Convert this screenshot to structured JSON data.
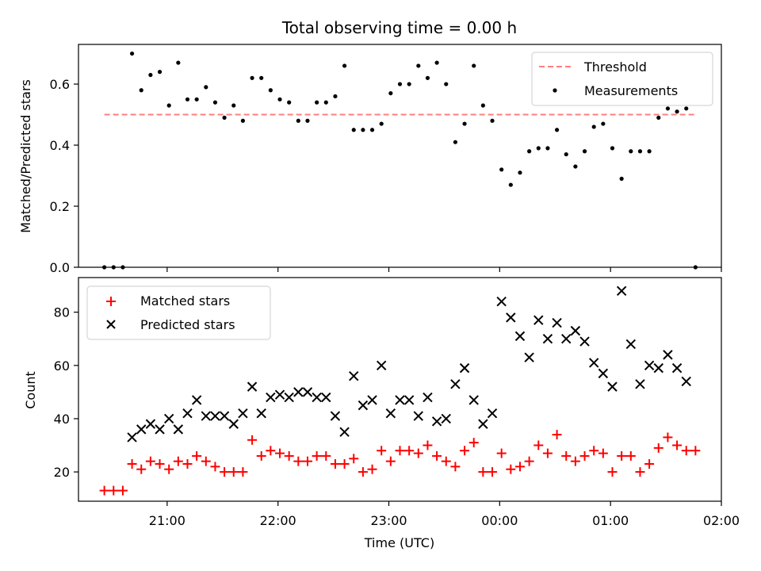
{
  "chart_data": [
    {
      "type": "scatter",
      "title": "Total observing time = 0.00 h",
      "ylabel": "Matched/Predicted stars",
      "xlim": [
        "20:12",
        "02:00"
      ],
      "ylim": [
        0,
        0.73
      ],
      "yticks": [
        "0.0",
        "0.2",
        "0.4",
        "0.6"
      ],
      "legend_position": "top-right",
      "threshold": {
        "name": "Threshold",
        "value": 0.5,
        "x_start": "20:26",
        "x_end": "01:46",
        "color": "#ff7f7f",
        "style": "dashed"
      },
      "series": [
        {
          "name": "Measurements",
          "color": "#000000",
          "marker": "dot",
          "x": [
            "20:26",
            "20:31",
            "20:36",
            "20:41",
            "20:46",
            "20:51",
            "20:56",
            "21:01",
            "21:06",
            "21:11",
            "21:16",
            "21:21",
            "21:26",
            "21:31",
            "21:36",
            "21:41",
            "21:46",
            "21:51",
            "21:56",
            "22:01",
            "22:06",
            "22:11",
            "22:16",
            "22:21",
            "22:26",
            "22:31",
            "22:36",
            "22:41",
            "22:46",
            "22:51",
            "22:56",
            "23:01",
            "23:06",
            "23:11",
            "23:16",
            "23:21",
            "23:26",
            "23:31",
            "23:36",
            "23:41",
            "23:46",
            "23:51",
            "23:56",
            "00:01",
            "00:06",
            "00:11",
            "00:16",
            "00:21",
            "00:26",
            "00:31",
            "00:36",
            "00:41",
            "00:46",
            "00:51",
            "00:56",
            "01:01",
            "01:06",
            "01:11",
            "01:16",
            "01:21",
            "01:26",
            "01:31",
            "01:36",
            "01:41",
            "01:46"
          ],
          "y": [
            0.0,
            0.0,
            0.0,
            0.7,
            0.58,
            0.63,
            0.64,
            0.53,
            0.67,
            0.55,
            0.55,
            0.59,
            0.54,
            0.49,
            0.53,
            0.48,
            0.62,
            0.62,
            0.58,
            0.55,
            0.54,
            0.48,
            0.48,
            0.54,
            0.54,
            0.56,
            0.66,
            0.45,
            0.45,
            0.45,
            0.47,
            0.57,
            0.6,
            0.6,
            0.66,
            0.62,
            0.67,
            0.6,
            0.41,
            0.47,
            0.66,
            0.53,
            0.48,
            0.32,
            0.27,
            0.31,
            0.38,
            0.39,
            0.39,
            0.45,
            0.37,
            0.33,
            0.38,
            0.46,
            0.47,
            0.39,
            0.29,
            0.38,
            0.38,
            0.38,
            0.49,
            0.52,
            0.51,
            0.52,
            0.0
          ]
        }
      ]
    },
    {
      "type": "scatter",
      "xlabel": "Time (UTC)",
      "ylabel": "Count",
      "xlim": [
        "20:12",
        "02:00"
      ],
      "ylim": [
        9,
        93
      ],
      "xticks": [
        "21:00",
        "22:00",
        "23:00",
        "00:00",
        "01:00",
        "02:00"
      ],
      "yticks": [
        "20",
        "40",
        "60",
        "80"
      ],
      "legend_position": "top-left",
      "series": [
        {
          "name": "Matched stars",
          "color": "#ff0000",
          "marker": "plus",
          "x": [
            "20:26",
            "20:31",
            "20:36",
            "20:41",
            "20:46",
            "20:51",
            "20:56",
            "21:01",
            "21:06",
            "21:11",
            "21:16",
            "21:21",
            "21:26",
            "21:31",
            "21:36",
            "21:41",
            "21:46",
            "21:51",
            "21:56",
            "22:01",
            "22:06",
            "22:11",
            "22:16",
            "22:21",
            "22:26",
            "22:31",
            "22:36",
            "22:41",
            "22:46",
            "22:51",
            "22:56",
            "23:01",
            "23:06",
            "23:11",
            "23:16",
            "23:21",
            "23:26",
            "23:31",
            "23:36",
            "23:41",
            "23:46",
            "23:51",
            "23:56",
            "00:01",
            "00:06",
            "00:11",
            "00:16",
            "00:21",
            "00:26",
            "00:31",
            "00:36",
            "00:41",
            "00:46",
            "00:51",
            "00:56",
            "01:01",
            "01:06",
            "01:11",
            "01:16",
            "01:21",
            "01:26",
            "01:31",
            "01:36",
            "01:41",
            "01:46"
          ],
          "y": [
            13,
            13,
            13,
            23,
            21,
            24,
            23,
            21,
            24,
            23,
            26,
            24,
            22,
            20,
            20,
            20,
            32,
            26,
            28,
            27,
            26,
            24,
            24,
            26,
            26,
            23,
            23,
            25,
            20,
            21,
            28,
            24,
            28,
            28,
            27,
            30,
            26,
            24,
            22,
            28,
            31,
            20,
            20,
            27,
            21,
            22,
            24,
            30,
            27,
            34,
            26,
            24,
            26,
            28,
            27,
            20,
            26,
            26,
            20,
            23,
            29,
            33,
            30,
            28,
            28
          ]
        },
        {
          "name": "Predicted stars",
          "color": "#000000",
          "marker": "x",
          "x": [
            "20:41",
            "20:46",
            "20:51",
            "20:56",
            "21:01",
            "21:06",
            "21:11",
            "21:16",
            "21:21",
            "21:26",
            "21:31",
            "21:36",
            "21:41",
            "21:46",
            "21:51",
            "21:56",
            "22:01",
            "22:06",
            "22:11",
            "22:16",
            "22:21",
            "22:26",
            "22:31",
            "22:36",
            "22:41",
            "22:46",
            "22:51",
            "22:56",
            "23:01",
            "23:06",
            "23:11",
            "23:16",
            "23:21",
            "23:26",
            "23:31",
            "23:36",
            "23:41",
            "23:46",
            "23:51",
            "23:56",
            "00:01",
            "00:06",
            "00:11",
            "00:16",
            "00:21",
            "00:26",
            "00:31",
            "00:36",
            "00:41",
            "00:46",
            "00:51",
            "00:56",
            "01:01",
            "01:06",
            "01:11",
            "01:16",
            "01:21",
            "01:26",
            "01:31",
            "01:36",
            "01:41"
          ],
          "y": [
            33,
            36,
            38,
            36,
            40,
            36,
            42,
            47,
            41,
            41,
            41,
            38,
            42,
            52,
            42,
            48,
            49,
            48,
            50,
            50,
            48,
            48,
            41,
            35,
            56,
            45,
            47,
            60,
            42,
            47,
            47,
            41,
            48,
            39,
            40,
            53,
            59,
            47,
            38,
            42,
            84,
            78,
            71,
            63,
            77,
            70,
            76,
            70,
            73,
            69,
            61,
            57,
            52,
            88,
            68,
            53,
            60,
            59,
            64,
            59,
            54
          ]
        }
      ]
    }
  ]
}
